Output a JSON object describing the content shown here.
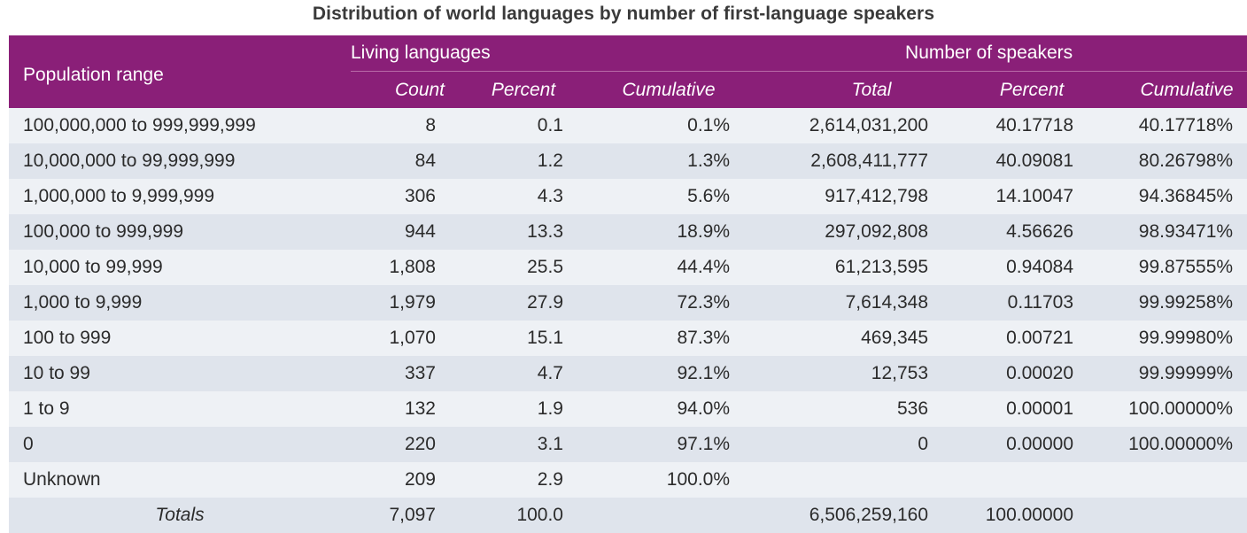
{
  "chart_data": {
    "type": "table",
    "title": "Distribution of world languages by number of first-language speakers",
    "header": {
      "population_range": "Population range",
      "living_languages": "Living languages",
      "number_of_speakers": "Number of speakers",
      "sub": {
        "count": "Count",
        "percent": "Percent",
        "cumulative": "Cumulative",
        "total": "Total",
        "speakers_percent": "Percent",
        "speakers_cumulative": "Cumulative"
      }
    },
    "rows": [
      {
        "range": "100,000,000 to 999,999,999",
        "count": "8",
        "percent": "0.1",
        "cumulative": "0.1%",
        "total": "2,614,031,200",
        "speakers_percent": "40.17718",
        "speakers_cumulative": "40.17718%"
      },
      {
        "range": "10,000,000 to 99,999,999",
        "count": "84",
        "percent": "1.2",
        "cumulative": "1.3%",
        "total": "2,608,411,777",
        "speakers_percent": "40.09081",
        "speakers_cumulative": "80.26798%"
      },
      {
        "range": "1,000,000 to 9,999,999",
        "count": "306",
        "percent": "4.3",
        "cumulative": "5.6%",
        "total": "917,412,798",
        "speakers_percent": "14.10047",
        "speakers_cumulative": "94.36845%"
      },
      {
        "range": "100,000 to 999,999",
        "count": "944",
        "percent": "13.3",
        "cumulative": "18.9%",
        "total": "297,092,808",
        "speakers_percent": "4.56626",
        "speakers_cumulative": "98.93471%"
      },
      {
        "range": "10,000 to 99,999",
        "count": "1,808",
        "percent": "25.5",
        "cumulative": "44.4%",
        "total": "61,213,595",
        "speakers_percent": "0.94084",
        "speakers_cumulative": "99.87555%"
      },
      {
        "range": "1,000 to 9,999",
        "count": "1,979",
        "percent": "27.9",
        "cumulative": "72.3%",
        "total": "7,614,348",
        "speakers_percent": "0.11703",
        "speakers_cumulative": "99.99258%"
      },
      {
        "range": "100 to 999",
        "count": "1,070",
        "percent": "15.1",
        "cumulative": "87.3%",
        "total": "469,345",
        "speakers_percent": "0.00721",
        "speakers_cumulative": "99.99980%"
      },
      {
        "range": "10 to 99",
        "count": "337",
        "percent": "4.7",
        "cumulative": "92.1%",
        "total": "12,753",
        "speakers_percent": "0.00020",
        "speakers_cumulative": "99.99999%"
      },
      {
        "range": "1 to 9",
        "count": "132",
        "percent": "1.9",
        "cumulative": "94.0%",
        "total": "536",
        "speakers_percent": "0.00001",
        "speakers_cumulative": "100.00000%"
      },
      {
        "range": "0",
        "count": "220",
        "percent": "3.1",
        "cumulative": "97.1%",
        "total": "0",
        "speakers_percent": "0.00000",
        "speakers_cumulative": "100.00000%"
      },
      {
        "range": "Unknown",
        "count": "209",
        "percent": "2.9",
        "cumulative": "100.0%",
        "total": "",
        "speakers_percent": "",
        "speakers_cumulative": ""
      }
    ],
    "totals": {
      "label": "Totals",
      "count": "7,097",
      "percent": "100.0",
      "cumulative": "",
      "total": "6,506,259,160",
      "speakers_percent": "100.00000",
      "speakers_cumulative": ""
    },
    "colors": {
      "header": "#8a1f78",
      "row_light": "#eef1f5",
      "row_dark": "#dfe4ec"
    }
  }
}
